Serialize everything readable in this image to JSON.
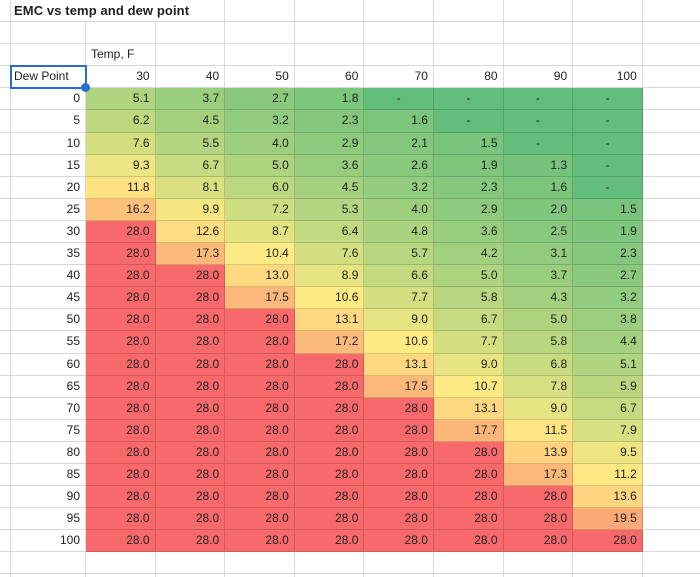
{
  "title": "EMC vs temp and dew point",
  "sheet": {
    "temp_axis_label": "Temp, F",
    "dew_axis_label": "Dew Point",
    "empty_cell_display": "-"
  },
  "selection": {
    "selected_cell_label": "Dew Point",
    "border_color": "#2a6dd0",
    "handle_shape": "circle"
  },
  "chart_data": {
    "type": "heatmap",
    "title": "EMC vs temp and dew point",
    "xlabel": "Temp, F",
    "ylabel": "Dew Point",
    "columns": [
      30,
      40,
      50,
      60,
      70,
      80,
      90,
      100
    ],
    "rows": [
      0,
      5,
      10,
      15,
      20,
      25,
      30,
      35,
      40,
      45,
      50,
      55,
      60,
      65,
      70,
      75,
      80,
      85,
      90,
      95,
      100
    ],
    "decimals": 1,
    "values": [
      [
        5.1,
        3.7,
        2.7,
        1.8,
        null,
        null,
        null,
        null
      ],
      [
        6.2,
        4.5,
        3.2,
        2.3,
        1.6,
        null,
        null,
        null
      ],
      [
        7.6,
        5.5,
        4.0,
        2.9,
        2.1,
        1.5,
        null,
        null
      ],
      [
        9.3,
        6.7,
        5.0,
        3.6,
        2.6,
        1.9,
        1.3,
        null
      ],
      [
        11.8,
        8.1,
        6.0,
        4.5,
        3.2,
        2.3,
        1.6,
        null
      ],
      [
        16.2,
        9.9,
        7.2,
        5.3,
        4.0,
        2.9,
        2.0,
        1.5
      ],
      [
        28.0,
        12.6,
        8.7,
        6.4,
        4.8,
        3.6,
        2.5,
        1.9
      ],
      [
        28.0,
        17.3,
        10.4,
        7.6,
        5.7,
        4.2,
        3.1,
        2.3
      ],
      [
        28.0,
        28.0,
        13.0,
        8.9,
        6.6,
        5.0,
        3.7,
        2.7
      ],
      [
        28.0,
        28.0,
        17.5,
        10.6,
        7.7,
        5.8,
        4.3,
        3.2
      ],
      [
        28.0,
        28.0,
        28.0,
        13.1,
        9.0,
        6.7,
        5.0,
        3.8
      ],
      [
        28.0,
        28.0,
        28.0,
        17.2,
        10.6,
        7.7,
        5.8,
        4.4
      ],
      [
        28.0,
        28.0,
        28.0,
        28.0,
        13.1,
        9.0,
        6.8,
        5.1
      ],
      [
        28.0,
        28.0,
        28.0,
        28.0,
        17.5,
        10.7,
        7.8,
        5.9
      ],
      [
        28.0,
        28.0,
        28.0,
        28.0,
        28.0,
        13.1,
        9.0,
        6.7
      ],
      [
        28.0,
        28.0,
        28.0,
        28.0,
        28.0,
        17.7,
        11.5,
        7.9
      ],
      [
        28.0,
        28.0,
        28.0,
        28.0,
        28.0,
        28.0,
        13.9,
        9.5
      ],
      [
        28.0,
        28.0,
        28.0,
        28.0,
        28.0,
        28.0,
        17.3,
        11.2
      ],
      [
        28.0,
        28.0,
        28.0,
        28.0,
        28.0,
        28.0,
        28.0,
        13.6
      ],
      [
        28.0,
        28.0,
        28.0,
        28.0,
        28.0,
        28.0,
        28.0,
        19.5
      ],
      [
        28.0,
        28.0,
        28.0,
        28.0,
        28.0,
        28.0,
        28.0,
        28.0
      ]
    ],
    "color_scale": {
      "type": "3-color",
      "min": {
        "value": 0,
        "color": "#63BE7B"
      },
      "mid": {
        "value": 10.6,
        "color": "#FFEB84"
      },
      "max": {
        "value": 28,
        "color": "#F8696B"
      }
    },
    "legend": "none",
    "grid": true
  }
}
